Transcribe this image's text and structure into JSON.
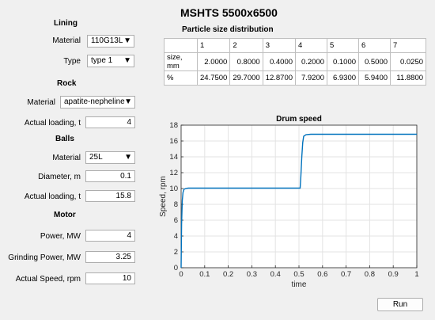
{
  "title": "MSHTS 5500x6500",
  "lining": {
    "title": "Lining",
    "material_label": "Material",
    "material_value": "110G13L",
    "type_label": "Type",
    "type_value": "type 1"
  },
  "rock": {
    "title": "Rock",
    "material_label": "Material",
    "material_value": "apatite-nepheline",
    "loading_label": "Actual loading, t",
    "loading_value": "4"
  },
  "balls": {
    "title": "Balls",
    "material_label": "Material",
    "material_value": "25L",
    "diameter_label": "Diameter, m",
    "diameter_value": "0.1",
    "loading_label": "Actual loading, t",
    "loading_value": "15.8"
  },
  "motor": {
    "title": "Motor",
    "power_label": "Power, MW",
    "power_value": "4",
    "grinding_label": "Grinding Power, MW",
    "grinding_value": "3.25",
    "speed_label": "Actual Speed, rpm",
    "speed_value": "10"
  },
  "psd": {
    "title": "Particle size distribution",
    "columns": [
      "",
      "1",
      "2",
      "3",
      "4",
      "5",
      "6",
      "7"
    ],
    "rows": [
      {
        "label": "size, mm",
        "values": [
          "2.0000",
          "0.8000",
          "0.4000",
          "0.2000",
          "0.1000",
          "0.5000",
          "0.0250"
        ]
      },
      {
        "label": "%",
        "values": [
          "24.7500",
          "29.7000",
          "12.8700",
          "7.9200",
          "6.9300",
          "5.9400",
          "11.8800"
        ]
      }
    ]
  },
  "run_label": "Run",
  "arrow_glyph": "▼",
  "chart_data": {
    "type": "line",
    "title": "Drum speed",
    "xlabel": "time",
    "ylabel": "Speed, rpm",
    "xlim": [
      0,
      1
    ],
    "ylim": [
      0,
      18
    ],
    "xticks": [
      0,
      0.1,
      0.2,
      0.3,
      0.4,
      0.5,
      0.6,
      0.7,
      0.8,
      0.9,
      1
    ],
    "yticks": [
      0,
      2,
      4,
      6,
      8,
      10,
      12,
      14,
      16,
      18
    ],
    "grid": true,
    "line_color": "#0072bd",
    "series": [
      {
        "x": [
          0,
          0.002,
          0.005,
          0.008,
          0.012,
          0.02,
          0.03,
          0.05,
          0.1,
          0.2,
          0.3,
          0.4,
          0.505,
          0.508,
          0.512,
          0.516,
          0.52,
          0.53,
          0.55,
          0.6,
          0.7,
          0.8,
          0.9,
          1
        ],
        "y": [
          0,
          5.5,
          8.5,
          9.5,
          9.9,
          10.0,
          10.05,
          10.05,
          10.05,
          10.05,
          10.05,
          10.05,
          10.05,
          11.5,
          14.0,
          15.8,
          16.6,
          16.8,
          16.85,
          16.85,
          16.85,
          16.85,
          16.85,
          16.85
        ]
      }
    ]
  }
}
